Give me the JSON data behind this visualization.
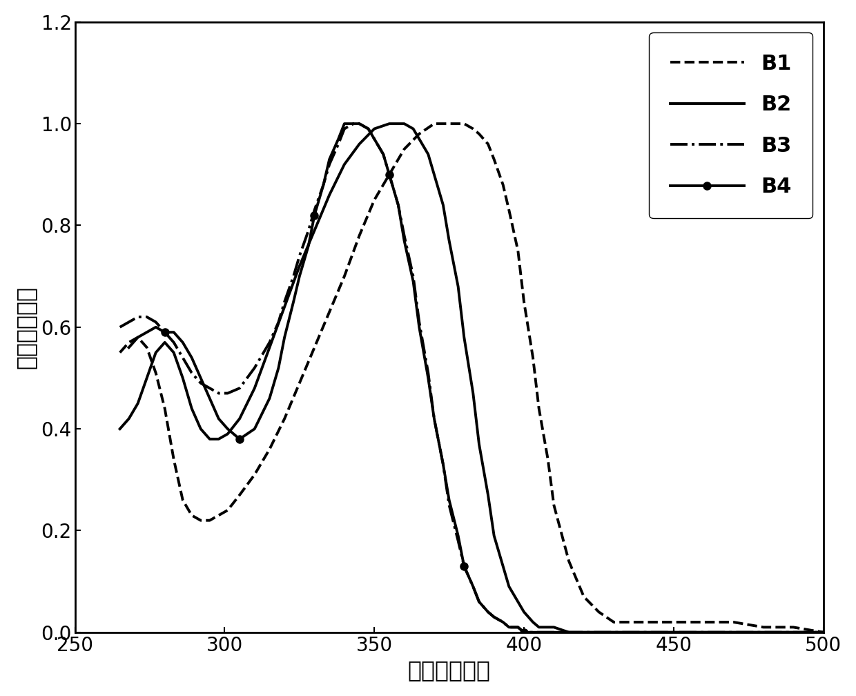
{
  "xlabel": "波长（纳米）",
  "ylabel": "相对吸收强度",
  "xlim": [
    250,
    500
  ],
  "ylim": [
    0,
    1.2
  ],
  "xticks": [
    250,
    300,
    350,
    400,
    450,
    500
  ],
  "yticks": [
    0,
    0.2,
    0.4,
    0.6,
    0.8,
    1.0,
    1.2
  ],
  "B1": {
    "label": "B1",
    "linestyle": "dashed",
    "linewidth": 2.8,
    "x": [
      265,
      268,
      271,
      274,
      277,
      280,
      283,
      286,
      289,
      292,
      295,
      298,
      301,
      305,
      310,
      315,
      320,
      325,
      330,
      335,
      340,
      345,
      350,
      355,
      360,
      365,
      370,
      375,
      378,
      380,
      383,
      385,
      388,
      390,
      393,
      395,
      398,
      400,
      403,
      405,
      408,
      410,
      415,
      420,
      425,
      430,
      435,
      440,
      450,
      460,
      470,
      480,
      490,
      500
    ],
    "y": [
      0.55,
      0.57,
      0.58,
      0.56,
      0.51,
      0.44,
      0.34,
      0.26,
      0.23,
      0.22,
      0.22,
      0.23,
      0.24,
      0.27,
      0.31,
      0.36,
      0.42,
      0.49,
      0.56,
      0.63,
      0.7,
      0.78,
      0.85,
      0.9,
      0.95,
      0.98,
      1.0,
      1.0,
      1.0,
      1.0,
      0.99,
      0.98,
      0.96,
      0.93,
      0.88,
      0.83,
      0.75,
      0.65,
      0.54,
      0.44,
      0.34,
      0.25,
      0.14,
      0.07,
      0.04,
      0.02,
      0.02,
      0.02,
      0.02,
      0.02,
      0.02,
      0.01,
      0.01,
      0.0
    ]
  },
  "B2": {
    "label": "B2",
    "linestyle": "solid",
    "linewidth": 2.8,
    "x": [
      265,
      268,
      271,
      274,
      277,
      280,
      283,
      286,
      289,
      292,
      295,
      298,
      301,
      305,
      310,
      315,
      320,
      325,
      330,
      335,
      340,
      345,
      350,
      355,
      358,
      360,
      363,
      365,
      368,
      370,
      373,
      375,
      378,
      380,
      383,
      385,
      388,
      390,
      393,
      395,
      398,
      400,
      403,
      405,
      408,
      410,
      415,
      420,
      425,
      430,
      440,
      450,
      460,
      470,
      480,
      490,
      500
    ],
    "y": [
      0.4,
      0.42,
      0.45,
      0.5,
      0.55,
      0.57,
      0.55,
      0.5,
      0.44,
      0.4,
      0.38,
      0.38,
      0.39,
      0.42,
      0.48,
      0.56,
      0.64,
      0.72,
      0.79,
      0.86,
      0.92,
      0.96,
      0.99,
      1.0,
      1.0,
      1.0,
      0.99,
      0.97,
      0.94,
      0.9,
      0.84,
      0.77,
      0.68,
      0.58,
      0.47,
      0.37,
      0.27,
      0.19,
      0.13,
      0.09,
      0.06,
      0.04,
      0.02,
      0.01,
      0.01,
      0.01,
      0.0,
      0.0,
      0.0,
      0.0,
      0.0,
      0.0,
      0.0,
      0.0,
      0.0,
      0.0,
      0.0
    ]
  },
  "B3": {
    "label": "B3",
    "linestyle": "dashdot",
    "linewidth": 2.8,
    "x": [
      265,
      268,
      271,
      274,
      277,
      280,
      283,
      286,
      289,
      292,
      295,
      298,
      301,
      305,
      310,
      315,
      318,
      320,
      323,
      325,
      328,
      330,
      333,
      335,
      338,
      340,
      343,
      345,
      348,
      350,
      353,
      355,
      358,
      360,
      363,
      365,
      368,
      370,
      373,
      375,
      378,
      380,
      383,
      385,
      388,
      390,
      393,
      395,
      398,
      400,
      403,
      405,
      410,
      415,
      420,
      430,
      440,
      450,
      460,
      470,
      480,
      490,
      500
    ],
    "y": [
      0.6,
      0.61,
      0.62,
      0.62,
      0.61,
      0.59,
      0.57,
      0.54,
      0.51,
      0.49,
      0.48,
      0.47,
      0.47,
      0.48,
      0.52,
      0.57,
      0.61,
      0.65,
      0.7,
      0.74,
      0.79,
      0.83,
      0.88,
      0.92,
      0.96,
      0.99,
      1.0,
      1.0,
      0.99,
      0.97,
      0.94,
      0.9,
      0.84,
      0.78,
      0.7,
      0.61,
      0.51,
      0.42,
      0.33,
      0.25,
      0.18,
      0.13,
      0.09,
      0.06,
      0.04,
      0.03,
      0.02,
      0.01,
      0.01,
      0.0,
      0.0,
      0.0,
      0.0,
      0.0,
      0.0,
      0.0,
      0.0,
      0.0,
      0.0,
      0.0,
      0.0,
      0.0,
      0.0
    ]
  },
  "B4": {
    "label": "B4",
    "linestyle": "solid",
    "linewidth": 2.8,
    "marker": "o",
    "markersize": 8,
    "x": [
      268,
      271,
      274,
      277,
      280,
      283,
      286,
      289,
      292,
      295,
      298,
      301,
      305,
      310,
      315,
      318,
      320,
      323,
      325,
      328,
      330,
      333,
      335,
      338,
      340,
      343,
      345,
      348,
      350,
      353,
      355,
      358,
      360,
      363,
      365,
      368,
      370,
      373,
      375,
      378,
      380,
      383,
      385,
      388,
      390,
      393,
      395,
      398,
      400,
      403,
      405,
      410,
      415,
      420,
      430,
      440,
      450,
      460,
      470,
      480,
      490,
      500
    ],
    "y": [
      0.56,
      0.58,
      0.59,
      0.6,
      0.59,
      0.59,
      0.57,
      0.54,
      0.5,
      0.46,
      0.42,
      0.4,
      0.38,
      0.4,
      0.46,
      0.52,
      0.58,
      0.65,
      0.7,
      0.76,
      0.82,
      0.88,
      0.93,
      0.97,
      1.0,
      1.0,
      1.0,
      0.99,
      0.97,
      0.94,
      0.9,
      0.84,
      0.77,
      0.69,
      0.6,
      0.5,
      0.42,
      0.33,
      0.26,
      0.19,
      0.13,
      0.09,
      0.06,
      0.04,
      0.03,
      0.02,
      0.01,
      0.01,
      0.0,
      0.0,
      0.0,
      0.0,
      0.0,
      0.0,
      0.0,
      0.0,
      0.0,
      0.0,
      0.0,
      0.0,
      0.0,
      0.0
    ]
  },
  "xlabel_fontsize": 24,
  "ylabel_fontsize": 24,
  "tick_fontsize": 20,
  "legend_fontsize": 22,
  "color": "#000000",
  "figsize": [
    12.4,
    10.08
  ],
  "dpi": 100
}
